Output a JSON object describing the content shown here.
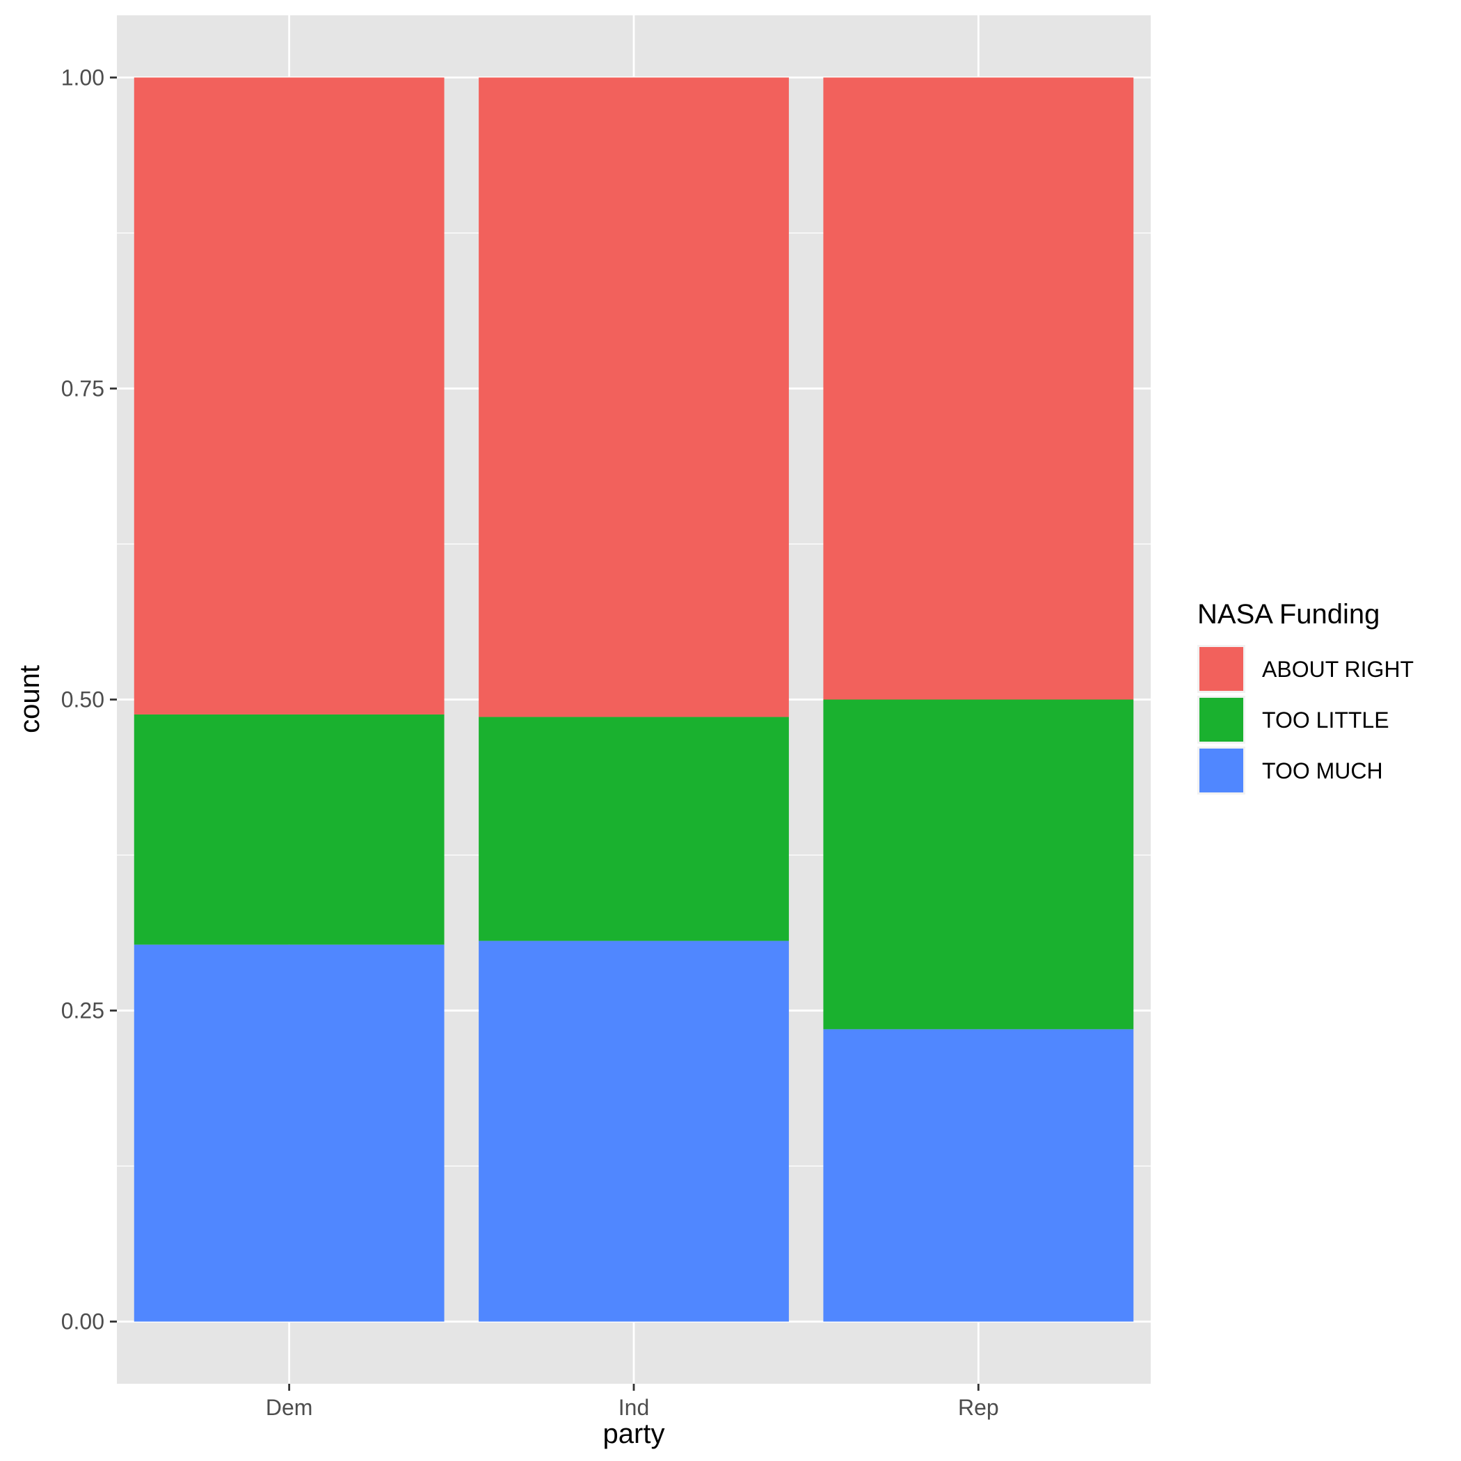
{
  "chart_data": {
    "type": "bar",
    "stacked": true,
    "position": "fill",
    "categories": [
      "Dem",
      "Ind",
      "Rep"
    ],
    "series": [
      {
        "name": "TOO MUCH",
        "color": "#5087ff",
        "values": [
          0.303,
          0.306,
          0.235
        ]
      },
      {
        "name": "TOO LITTLE",
        "color": "#1ab12f",
        "values": [
          0.185,
          0.18,
          0.265
        ]
      },
      {
        "name": "ABOUT RIGHT",
        "color": "#f2615c",
        "values": [
          0.512,
          0.514,
          0.5
        ]
      }
    ],
    "xlabel": "party",
    "ylabel": "count",
    "ylim": [
      -0.05,
      1.05
    ],
    "yticks": [
      0,
      0.25,
      0.5,
      0.75,
      1
    ],
    "ytick_labels": [
      "0.00",
      "0.25",
      "0.50",
      "0.75",
      "1.00"
    ],
    "legend": {
      "title": "NASA Funding",
      "position": "right",
      "entries": [
        "ABOUT RIGHT",
        "TOO LITTLE",
        "TOO MUCH"
      ]
    },
    "grid": true,
    "panel_background": "#e5e5e5",
    "grid_color": "#ffffff"
  }
}
